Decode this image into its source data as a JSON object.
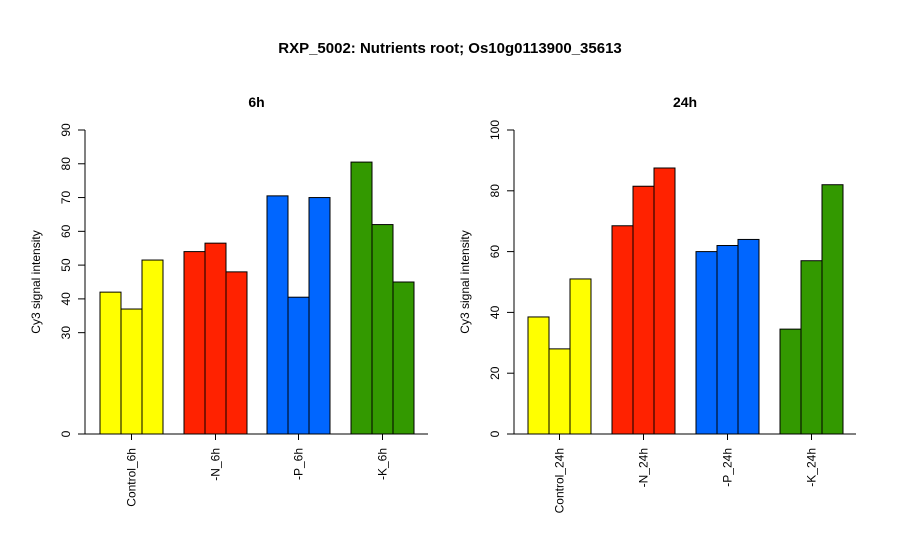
{
  "figure_title": "RXP_5002: Nutrients root; Os10g0113900_35613",
  "chart_data": [
    {
      "type": "bar",
      "title": "6h",
      "ylabel": "Cy3 signal intensity",
      "xlabel": "",
      "ylim": [
        0,
        90
      ],
      "yticks": [
        0,
        30,
        40,
        50,
        60,
        70,
        80,
        90
      ],
      "categories": [
        "Control_6h",
        "-N_6h",
        "-P_6h",
        "-K_6h"
      ],
      "group_colors": [
        "#ffff00",
        "#ff2200",
        "#0066ff",
        "#339900"
      ],
      "values": [
        [
          42,
          37,
          51.5
        ],
        [
          54,
          56.5,
          48
        ],
        [
          70.5,
          40.5,
          70
        ],
        [
          80.5,
          62,
          45
        ]
      ],
      "grid": false
    },
    {
      "type": "bar",
      "title": "24h",
      "ylabel": "Cy3 signal intensity",
      "xlabel": "",
      "ylim": [
        0,
        100
      ],
      "yticks": [
        0,
        20,
        40,
        60,
        80,
        100
      ],
      "categories": [
        "Control_24h",
        "-N_24h",
        "-P_24h",
        "-K_24h"
      ],
      "group_colors": [
        "#ffff00",
        "#ff2200",
        "#0066ff",
        "#339900"
      ],
      "values": [
        [
          38.5,
          28,
          51
        ],
        [
          68.5,
          81.5,
          87.5
        ],
        [
          60,
          62,
          64
        ],
        [
          34.5,
          57,
          82
        ]
      ],
      "grid": false
    }
  ]
}
